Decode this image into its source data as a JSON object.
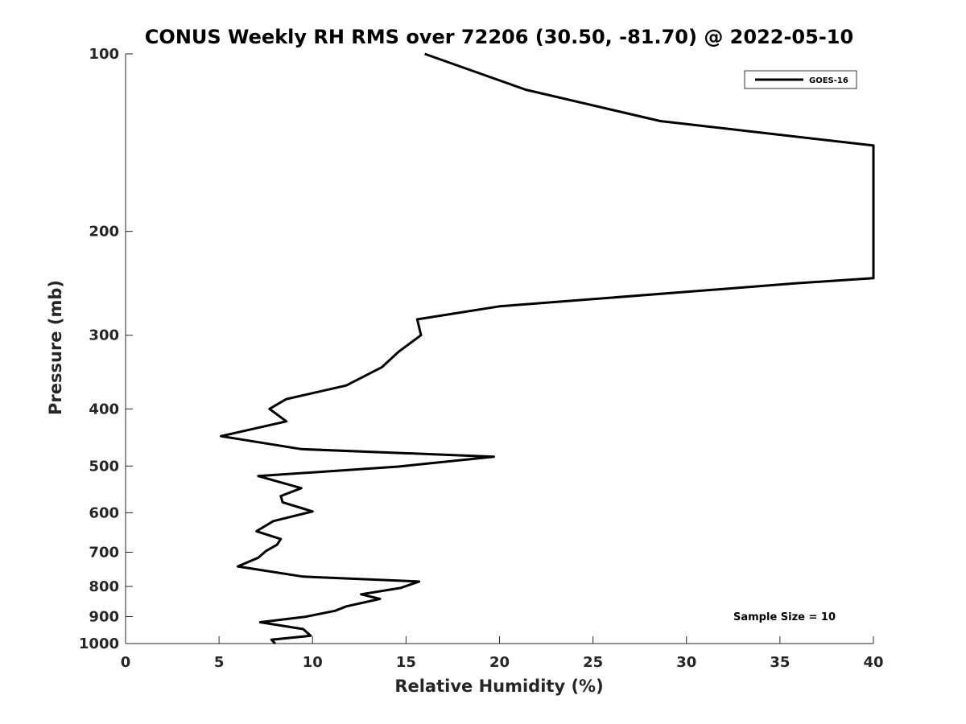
{
  "chart_data": {
    "type": "line",
    "title": "CONUS Weekly RH RMS over 72206 (30.50, -81.70) @ 2022-05-10",
    "xlabel": "Relative Humidity (%)",
    "ylabel": "Pressure (mb)",
    "xlim": [
      0,
      40
    ],
    "ylim": [
      100,
      1000
    ],
    "y_scale": "log",
    "y_reversed": true,
    "x_ticks": [
      0,
      5,
      10,
      15,
      20,
      25,
      30,
      35,
      40
    ],
    "x_tick_labels": [
      "0",
      "5",
      "10",
      "15",
      "20",
      "25",
      "30",
      "35",
      "40"
    ],
    "y_ticks": [
      100,
      200,
      300,
      400,
      500,
      600,
      700,
      800,
      900,
      1000
    ],
    "y_tick_labels": [
      "100",
      "200",
      "300",
      "400",
      "500",
      "600",
      "700",
      "800",
      "900",
      "1000"
    ],
    "grid": false,
    "legend_position": "top-right",
    "series": [
      {
        "name": "GOES-16",
        "color": "#000000",
        "points": [
          [
            16.0,
            100
          ],
          [
            21.4,
            115
          ],
          [
            28.6,
            130
          ],
          [
            40.0,
            143
          ],
          [
            40.0,
            240
          ],
          [
            35.8,
            245
          ],
          [
            20.0,
            268
          ],
          [
            15.6,
            282
          ],
          [
            15.8,
            300
          ],
          [
            14.6,
            320
          ],
          [
            13.7,
            340
          ],
          [
            11.8,
            365
          ],
          [
            8.6,
            385
          ],
          [
            7.7,
            400
          ],
          [
            8.6,
            420
          ],
          [
            5.1,
            445
          ],
          [
            9.4,
            468
          ],
          [
            19.7,
            482
          ],
          [
            14.6,
            501
          ],
          [
            7.1,
            520
          ],
          [
            9.4,
            545
          ],
          [
            8.3,
            562
          ],
          [
            8.4,
            576
          ],
          [
            10.0,
            597
          ],
          [
            7.9,
            620
          ],
          [
            7.0,
            645
          ],
          [
            8.3,
            665
          ],
          [
            8.1,
            680
          ],
          [
            7.5,
            697
          ],
          [
            7.1,
            715
          ],
          [
            6.0,
            740
          ],
          [
            9.5,
            770
          ],
          [
            15.7,
            785
          ],
          [
            14.7,
            805
          ],
          [
            12.6,
            825
          ],
          [
            13.6,
            840
          ],
          [
            11.8,
            865
          ],
          [
            11.2,
            880
          ],
          [
            9.6,
            901
          ],
          [
            7.2,
            920
          ],
          [
            9.5,
            945
          ],
          [
            9.9,
            970
          ],
          [
            7.8,
            985
          ],
          [
            8.0,
            1000
          ]
        ]
      }
    ],
    "annotations": [
      "Sample Size = 10"
    ]
  }
}
